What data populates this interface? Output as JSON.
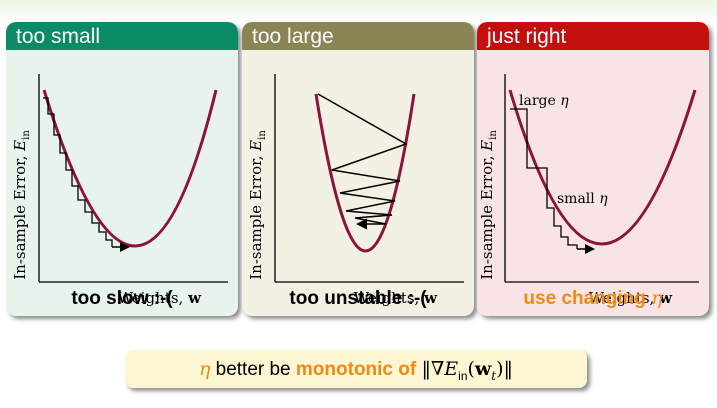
{
  "panels": [
    {
      "title": "too small",
      "header_color": "#0b8a66",
      "body_color": "#e8f3ec",
      "caption": "too slow :-(",
      "ylabel": "In-sample Error, ",
      "ylabel_sym": "E",
      "ylabel_sub": "in",
      "xlabel": "Weights, ",
      "xlabel_sym": "w"
    },
    {
      "title": "too large",
      "header_color": "#8b8556",
      "body_color": "#f3f1e4",
      "caption": "too unstable :-(",
      "ylabel": "In-sample Error, ",
      "ylabel_sym": "E",
      "ylabel_sub": "in",
      "xlabel": "Weights, ",
      "xlabel_sym": "w"
    },
    {
      "title": "just right",
      "header_color": "#c40f0f",
      "body_color": "#f8e4e4",
      "caption_prefix": "use changing ",
      "caption_eta": "η",
      "ylabel": "In-sample Error, ",
      "ylabel_sym": "E",
      "ylabel_sub": "in",
      "xlabel": "Weights, ",
      "xlabel_sym": "w",
      "annotation_large": "large ",
      "annotation_small": "small ",
      "annotation_eta": "η"
    }
  ],
  "bottom": {
    "eta": "η",
    "text1": " better be ",
    "highlight": "monotonic of",
    "formula_open": "‖∇",
    "formula_E": "E",
    "formula_sub": "in",
    "formula_paren_open": "(",
    "formula_w": "w",
    "formula_t": "t",
    "formula_close": ")‖"
  },
  "colors": {
    "curve": "#8a1538",
    "highlight": "#f08a12"
  }
}
